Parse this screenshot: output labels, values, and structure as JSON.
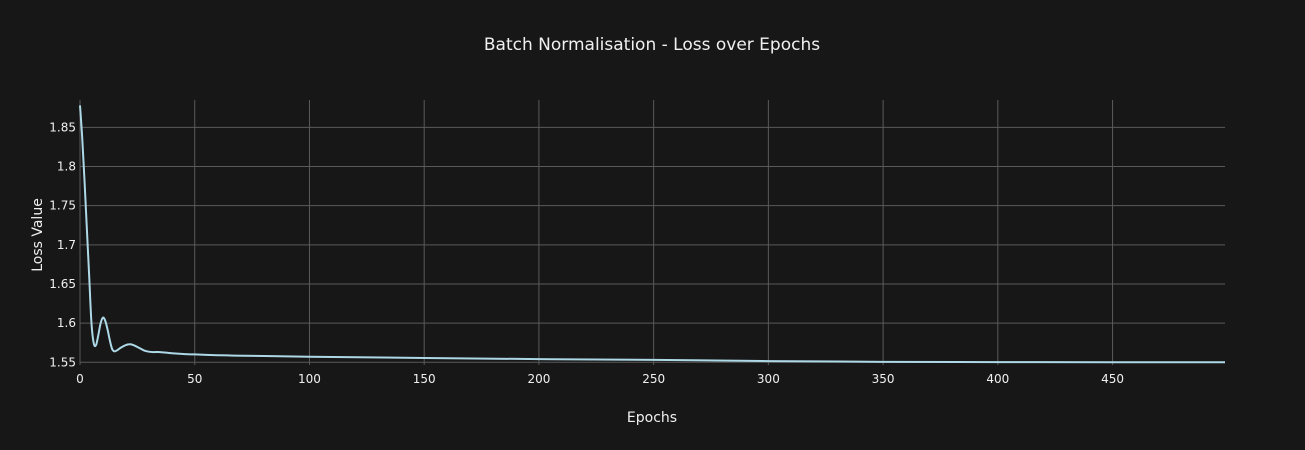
{
  "chart_data": {
    "type": "line",
    "title": "Batch Normalisation - Loss over Epochs",
    "xlabel": "Epochs",
    "ylabel": "Loss Value",
    "xlim": [
      0,
      499
    ],
    "ylim": [
      1.5465,
      1.885
    ],
    "x_ticks": [
      0,
      50,
      100,
      150,
      200,
      250,
      300,
      350,
      400,
      450
    ],
    "y_ticks": [
      1.55,
      1.6,
      1.65,
      1.7,
      1.75,
      1.8,
      1.85
    ],
    "y_tick_labels": [
      "1.55",
      "1.6",
      "1.65",
      "1.7",
      "1.75",
      "1.8",
      "1.85"
    ],
    "grid": true,
    "colors": {
      "background": "#171717",
      "grid": "#5a5a5a",
      "line": "#add8e6",
      "text": "#f0f0f0"
    },
    "series": [
      {
        "x": [
          0,
          1,
          2,
          3,
          4,
          5,
          6,
          7,
          8,
          9,
          10,
          11,
          12,
          13,
          14,
          15,
          16,
          17,
          18,
          20,
          22,
          24,
          26,
          28,
          30,
          32,
          35,
          40,
          45,
          50,
          55,
          60,
          67,
          80,
          100,
          150,
          200,
          250,
          300,
          330,
          350,
          400,
          450,
          499
        ],
        "y": [
          1.878,
          1.835,
          1.78,
          1.72,
          1.66,
          1.6,
          1.574,
          1.572,
          1.585,
          1.6,
          1.607,
          1.603,
          1.592,
          1.578,
          1.567,
          1.564,
          1.565,
          1.567,
          1.569,
          1.572,
          1.573,
          1.571,
          1.568,
          1.565,
          1.5635,
          1.563,
          1.563,
          1.5615,
          1.5605,
          1.56,
          1.5595,
          1.559,
          1.5585,
          1.558,
          1.557,
          1.5555,
          1.554,
          1.553,
          1.5515,
          1.551,
          1.5505,
          1.5502,
          1.55,
          1.55
        ]
      }
    ]
  }
}
